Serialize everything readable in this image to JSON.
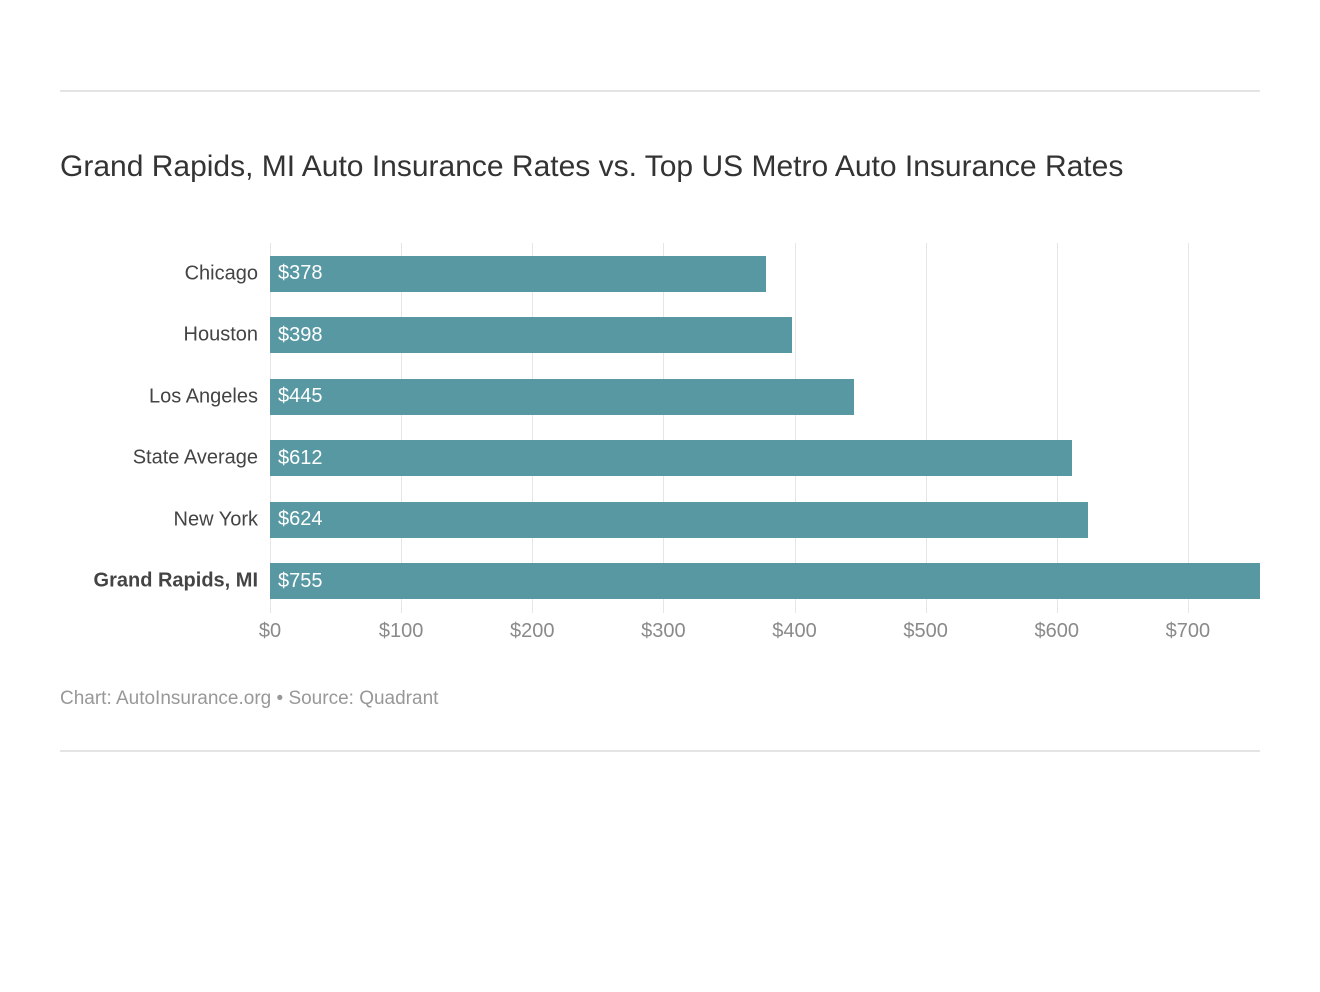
{
  "title": "Grand Rapids, MI Auto Insurance Rates vs. Top US Metro Auto Insurance Rates",
  "source_line": "Chart: AutoInsurance.org • Source: Quadrant",
  "chart": {
    "type": "bar-horizontal",
    "bar_color": "#5798a3",
    "value_label_color": "#ffffff",
    "grid_color": "#e6e6e6",
    "axis_label_color": "#8a8a8a",
    "category_label_color": "#444444",
    "title_color": "#333333",
    "background_color": "#ffffff",
    "title_fontsize": 30,
    "axis_fontsize": 20,
    "value_fontsize": 20,
    "x_min": 0,
    "x_max": 755,
    "x_ticks": [
      0,
      100,
      200,
      300,
      400,
      500,
      600,
      700
    ],
    "x_tick_labels": [
      "$0",
      "$100",
      "$200",
      "$300",
      "$400",
      "$500",
      "$600",
      "$700"
    ],
    "bars": [
      {
        "category": "Chicago",
        "value": 378,
        "label": "$378",
        "bold": false
      },
      {
        "category": "Houston",
        "value": 398,
        "label": "$398",
        "bold": false
      },
      {
        "category": "Los Angeles",
        "value": 445,
        "label": "$445",
        "bold": false
      },
      {
        "category": "State Average",
        "value": 612,
        "label": "$612",
        "bold": false
      },
      {
        "category": "New York",
        "value": 624,
        "label": "$624",
        "bold": false
      },
      {
        "category": "Grand Rapids, MI",
        "value": 755,
        "label": "$755",
        "bold": true
      }
    ]
  }
}
